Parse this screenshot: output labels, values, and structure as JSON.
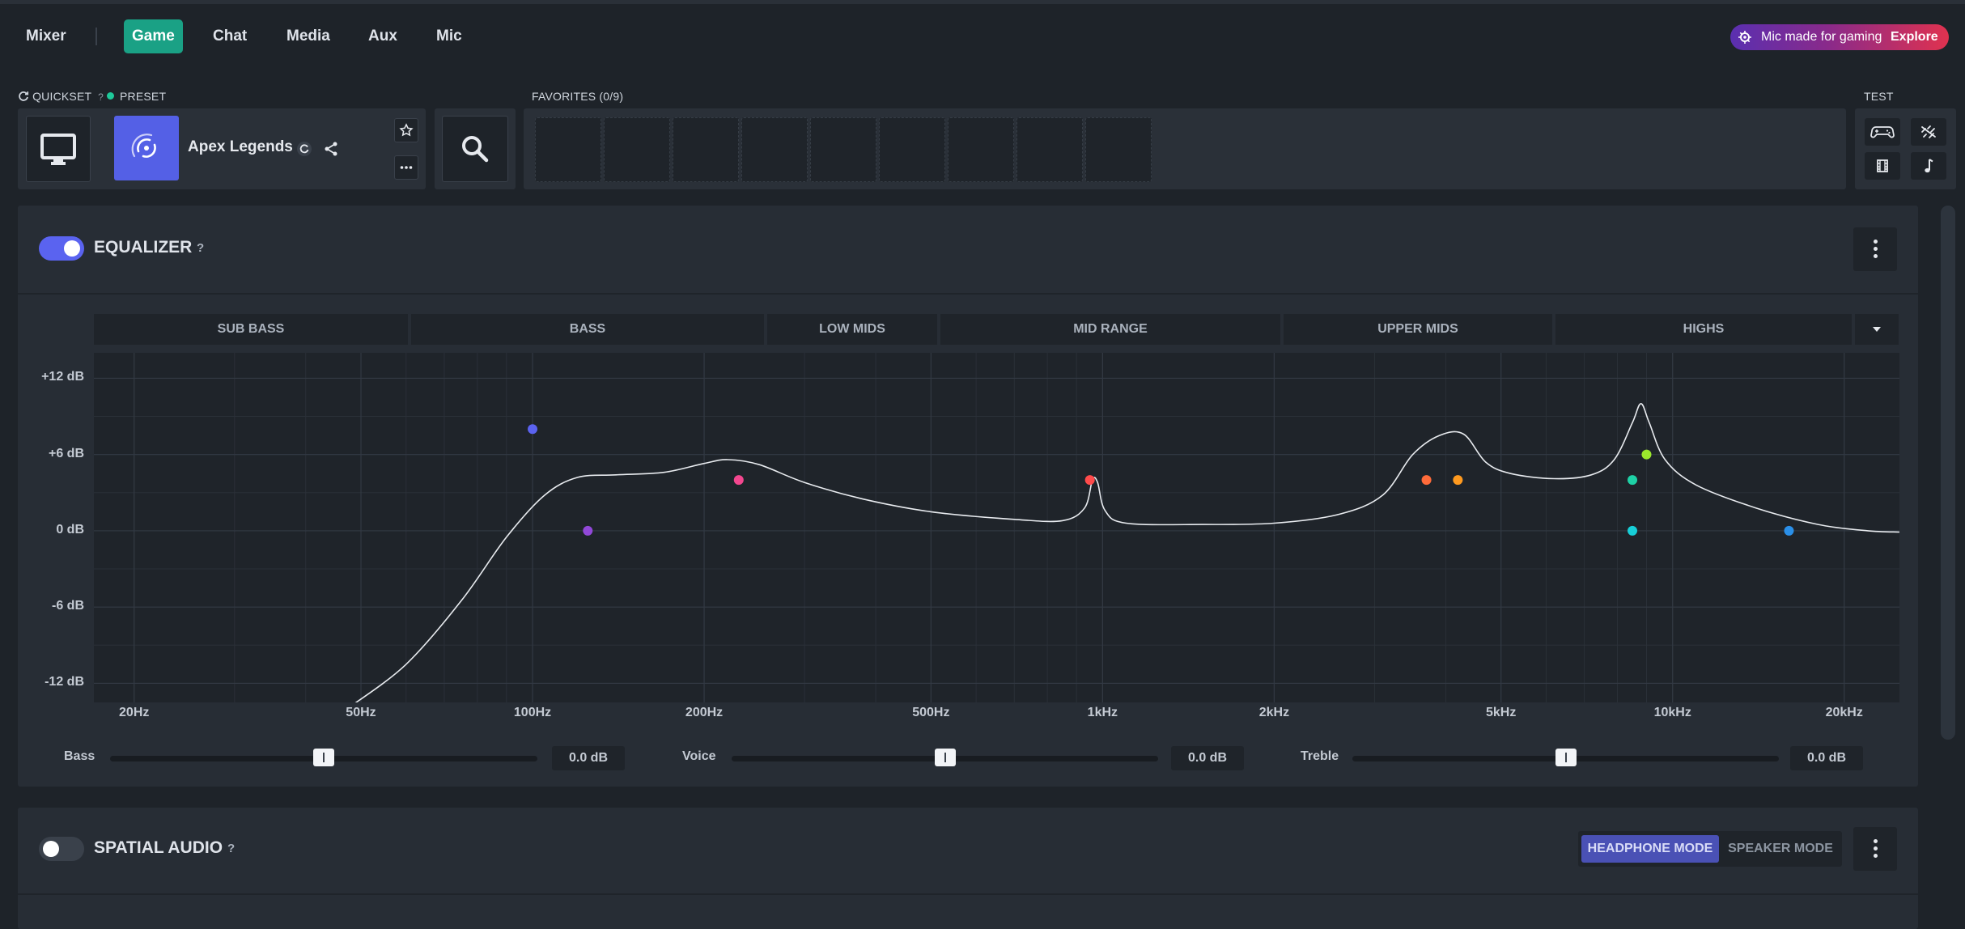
{
  "nav": {
    "tabs": [
      {
        "label": "Mixer",
        "active": false
      },
      {
        "label": "Game",
        "active": true
      },
      {
        "label": "Chat",
        "active": false
      },
      {
        "label": "Media",
        "active": false
      },
      {
        "label": "Aux",
        "active": false
      },
      {
        "label": "Mic",
        "active": false
      }
    ],
    "promo": {
      "text": "Mic made for gaming",
      "action": "Explore"
    }
  },
  "quickset": {
    "label": "QUICKSET",
    "help": "?",
    "preset_label": "PRESET",
    "preset_name": "Apex Legends",
    "favorites_label": "FAVORITES (0/9)",
    "favorite_slots": 9,
    "test_label": "TEST",
    "test_buttons": [
      "gamepad-icon",
      "sound-wave-icon",
      "film-icon",
      "music-note-icon"
    ]
  },
  "equalizer": {
    "title": "EQUALIZER",
    "help": "?",
    "enabled": true,
    "bands": [
      "SUB BASS",
      "BASS",
      "LOW MIDS",
      "MID RANGE",
      "UPPER MIDS",
      "HIGHS"
    ],
    "sliders": [
      {
        "label": "Bass",
        "value": "0.0 dB",
        "level": 0.5
      },
      {
        "label": "Voice",
        "value": "0.0 dB",
        "level": 0.5
      },
      {
        "label": "Treble",
        "value": "0.0 dB",
        "level": 0.5
      }
    ]
  },
  "chart_data": {
    "type": "line",
    "title": "",
    "xscale": "log",
    "xlim": [
      17,
      25000
    ],
    "ylim": [
      -13.5,
      14
    ],
    "x_ticks": [
      {
        "hz": 20,
        "label": "20Hz"
      },
      {
        "hz": 50,
        "label": "50Hz"
      },
      {
        "hz": 100,
        "label": "100Hz"
      },
      {
        "hz": 200,
        "label": "200Hz"
      },
      {
        "hz": 500,
        "label": "500Hz"
      },
      {
        "hz": 1000,
        "label": "1kHz"
      },
      {
        "hz": 2000,
        "label": "2kHz"
      },
      {
        "hz": 5000,
        "label": "5kHz"
      },
      {
        "hz": 10000,
        "label": "10kHz"
      },
      {
        "hz": 20000,
        "label": "20kHz"
      }
    ],
    "y_ticks": [
      {
        "db": 12,
        "label": "+12 dB"
      },
      {
        "db": 6,
        "label": "+6 dB"
      },
      {
        "db": 0,
        "label": "0 dB"
      },
      {
        "db": -6,
        "label": "-6 dB"
      },
      {
        "db": -12,
        "label": "-12 dB"
      }
    ],
    "grid": true,
    "curve": [
      [
        48,
        -13.8
      ],
      [
        60,
        -10.5
      ],
      [
        75,
        -5.5
      ],
      [
        90,
        -0.5
      ],
      [
        105,
        2.8
      ],
      [
        120,
        4.2
      ],
      [
        140,
        4.4
      ],
      [
        170,
        4.6
      ],
      [
        200,
        5.3
      ],
      [
        220,
        5.6
      ],
      [
        250,
        5.2
      ],
      [
        300,
        3.8
      ],
      [
        380,
        2.5
      ],
      [
        500,
        1.5
      ],
      [
        700,
        0.9
      ],
      [
        850,
        0.8
      ],
      [
        930,
        1.8
      ],
      [
        960,
        4.0
      ],
      [
        980,
        3.8
      ],
      [
        1010,
        1.6
      ],
      [
        1100,
        0.6
      ],
      [
        1500,
        0.5
      ],
      [
        2000,
        0.6
      ],
      [
        2600,
        1.3
      ],
      [
        3100,
        2.8
      ],
      [
        3500,
        6.0
      ],
      [
        3900,
        7.5
      ],
      [
        4300,
        7.6
      ],
      [
        4700,
        5.4
      ],
      [
        5200,
        4.5
      ],
      [
        6200,
        4.1
      ],
      [
        7200,
        4.4
      ],
      [
        7900,
        5.6
      ],
      [
        8500,
        8.5
      ],
      [
        8800,
        10.0
      ],
      [
        9100,
        8.5
      ],
      [
        9700,
        5.6
      ],
      [
        11000,
        3.6
      ],
      [
        14000,
        1.8
      ],
      [
        18000,
        0.5
      ],
      [
        22000,
        0.0
      ],
      [
        25000,
        -0.1
      ]
    ],
    "points": [
      {
        "hz": 100,
        "db": 8.0,
        "color": "#5b63f0"
      },
      {
        "hz": 125,
        "db": 0.0,
        "color": "#9148d8"
      },
      {
        "hz": 230,
        "db": 4.0,
        "color": "#f3478f"
      },
      {
        "hz": 950,
        "db": 4.0,
        "color": "#ff4b4b"
      },
      {
        "hz": 3700,
        "db": 4.0,
        "color": "#ff6b3a"
      },
      {
        "hz": 4200,
        "db": 4.0,
        "color": "#ff9a1f"
      },
      {
        "hz": 8500,
        "db": 4.0,
        "color": "#1ed1a6"
      },
      {
        "hz": 8500,
        "db": 0.0,
        "color": "#17cfd8"
      },
      {
        "hz": 9000,
        "db": 6.0,
        "color": "#9be82c"
      },
      {
        "hz": 16000,
        "db": 0.0,
        "color": "#2a8fe8"
      }
    ]
  },
  "spatial": {
    "title": "SPATIAL AUDIO",
    "help": "?",
    "enabled": false,
    "modes": [
      {
        "label": "HEADPHONE MODE",
        "active": true
      },
      {
        "label": "SPEAKER MODE",
        "active": false
      }
    ]
  },
  "colors": {
    "accent": "#1aa185",
    "toggle_on": "#5a63f0",
    "headphone_mode": "#4a51b5"
  }
}
